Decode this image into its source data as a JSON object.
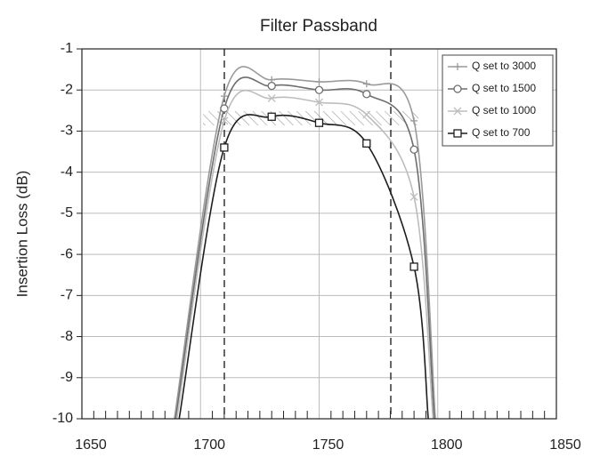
{
  "chart_data": {
    "type": "line",
    "title": "Filter Passband",
    "y_label": "Insertion Loss (dB)",
    "xlim": [
      1650,
      1850
    ],
    "xticks": [
      1650,
      1700,
      1750,
      1800,
      1850
    ],
    "ylim": [
      -10,
      -1
    ],
    "yticks": [
      -1,
      -2,
      -3,
      -4,
      -5,
      -6,
      -7,
      -8,
      -9,
      -10
    ],
    "grid": true,
    "legend": "upper right",
    "series": [
      {
        "name": "Q  set to 3000",
        "color": "#9a9a9a",
        "marker": "plus",
        "x": [
          1689,
          1710,
          1730,
          1750,
          1770,
          1790,
          1799
        ],
        "values": [
          -10,
          -2.15,
          -1.75,
          -1.8,
          -1.85,
          -2.75,
          -10
        ]
      },
      {
        "name": "Q  set to 1500",
        "color": "#6e6e6e",
        "marker": "circle",
        "x": [
          1689.5,
          1710,
          1730,
          1750,
          1770,
          1790,
          1798.5
        ],
        "values": [
          -10,
          -2.45,
          -1.9,
          -2.0,
          -2.1,
          -3.45,
          -10
        ]
      },
      {
        "name": "Q  set to 1000",
        "color": "#bdbdbd",
        "marker": "x",
        "x": [
          1690,
          1710,
          1730,
          1750,
          1770,
          1790,
          1798
        ],
        "values": [
          -10,
          -2.75,
          -2.2,
          -2.3,
          -2.6,
          -4.6,
          -10
        ]
      },
      {
        "name": "Q  set to 700",
        "color": "#1e1e1e",
        "marker": "square",
        "x": [
          1691,
          1710,
          1730,
          1750,
          1770,
          1790,
          1796
        ],
        "values": [
          -10,
          -3.4,
          -2.65,
          -2.8,
          -3.3,
          -6.3,
          -10
        ]
      }
    ]
  }
}
